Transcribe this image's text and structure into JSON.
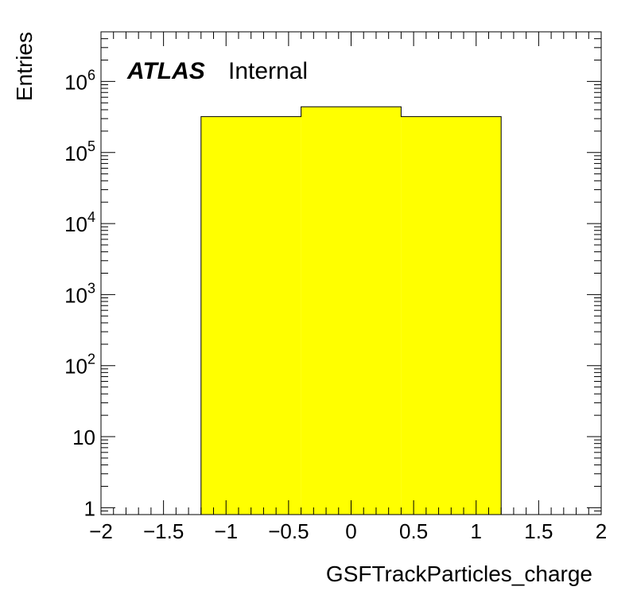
{
  "chart_data": {
    "type": "bar",
    "histogram": true,
    "xlabel": "GSFTrackParticles_charge",
    "ylabel": "Entries",
    "label_bold": "ATLAS",
    "label_normal": "Internal",
    "xlim": [
      -2,
      2
    ],
    "ylim": [
      0.8,
      5000000
    ],
    "yscale": "log",
    "bins": [
      {
        "low": -1.2,
        "high": -0.4,
        "value": 320000
      },
      {
        "low": -0.4,
        "high": 0.4,
        "value": 440000
      },
      {
        "low": 0.4,
        "high": 1.2,
        "value": 320000
      }
    ],
    "fill_color": "#ffff00",
    "line_color": "#000000",
    "x_ticks": [
      {
        "value": -2,
        "label": "−2"
      },
      {
        "value": -1.5,
        "label": "−1.5"
      },
      {
        "value": -1,
        "label": "−1"
      },
      {
        "value": -0.5,
        "label": "−0.5"
      },
      {
        "value": 0,
        "label": "0"
      },
      {
        "value": 0.5,
        "label": "0.5"
      },
      {
        "value": 1,
        "label": "1"
      },
      {
        "value": 1.5,
        "label": "1.5"
      },
      {
        "value": 2,
        "label": "2"
      }
    ],
    "y_ticks": [
      {
        "value": 1,
        "base": "1",
        "exp": ""
      },
      {
        "value": 10,
        "base": "10",
        "exp": ""
      },
      {
        "value": 100,
        "base": "10",
        "exp": "2"
      },
      {
        "value": 1000,
        "base": "10",
        "exp": "3"
      },
      {
        "value": 10000,
        "base": "10",
        "exp": "4"
      },
      {
        "value": 100000,
        "base": "10",
        "exp": "5"
      },
      {
        "value": 1000000,
        "base": "10",
        "exp": "6"
      }
    ]
  }
}
